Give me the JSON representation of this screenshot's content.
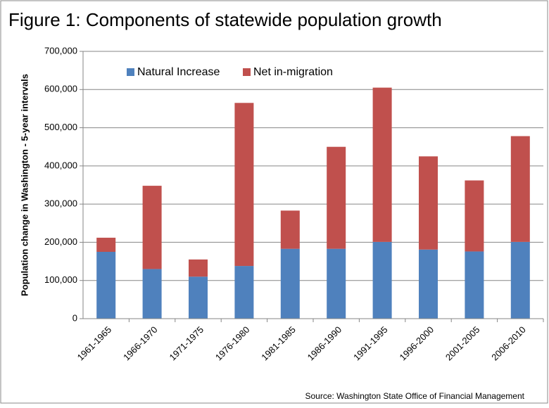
{
  "chart_data": {
    "type": "stacked_bar",
    "title": "Figure 1: Components of statewide population growth",
    "y_label": "Population change in Washington - 5-year intervals",
    "source": "Source: Washington State Office of Financial Management",
    "categories": [
      "1961-1965",
      "1966-1970",
      "1971-1975",
      "1976-1980",
      "1981-1985",
      "1986-1990",
      "1991-1995",
      "1996-2000",
      "2001-2005",
      "2006-2010"
    ],
    "series": [
      {
        "name": "Natural Increase",
        "color": "#4f81bd",
        "values": [
          175000,
          130000,
          110000,
          138000,
          183000,
          183000,
          201000,
          181000,
          176000,
          201000
        ]
      },
      {
        "name": "Net in-migration",
        "color": "#c0504d",
        "values": [
          37000,
          218000,
          45000,
          427000,
          100000,
          267000,
          404000,
          244000,
          186000,
          277000
        ]
      }
    ],
    "ylim": [
      0,
      700000
    ],
    "yticks": [
      0,
      {
        "value": 100000,
        "label": "100,000"
      },
      {
        "value": 200000,
        "label": "200,000"
      },
      {
        "value": 300000,
        "label": "300,000"
      },
      {
        "value": 400000,
        "label": "400,000"
      },
      {
        "value": 500000,
        "label": "500,000"
      },
      {
        "value": 600000,
        "label": "600,000"
      },
      {
        "value": 700000,
        "label": "700,000"
      }
    ],
    "grid": true,
    "legend": "top-left"
  }
}
